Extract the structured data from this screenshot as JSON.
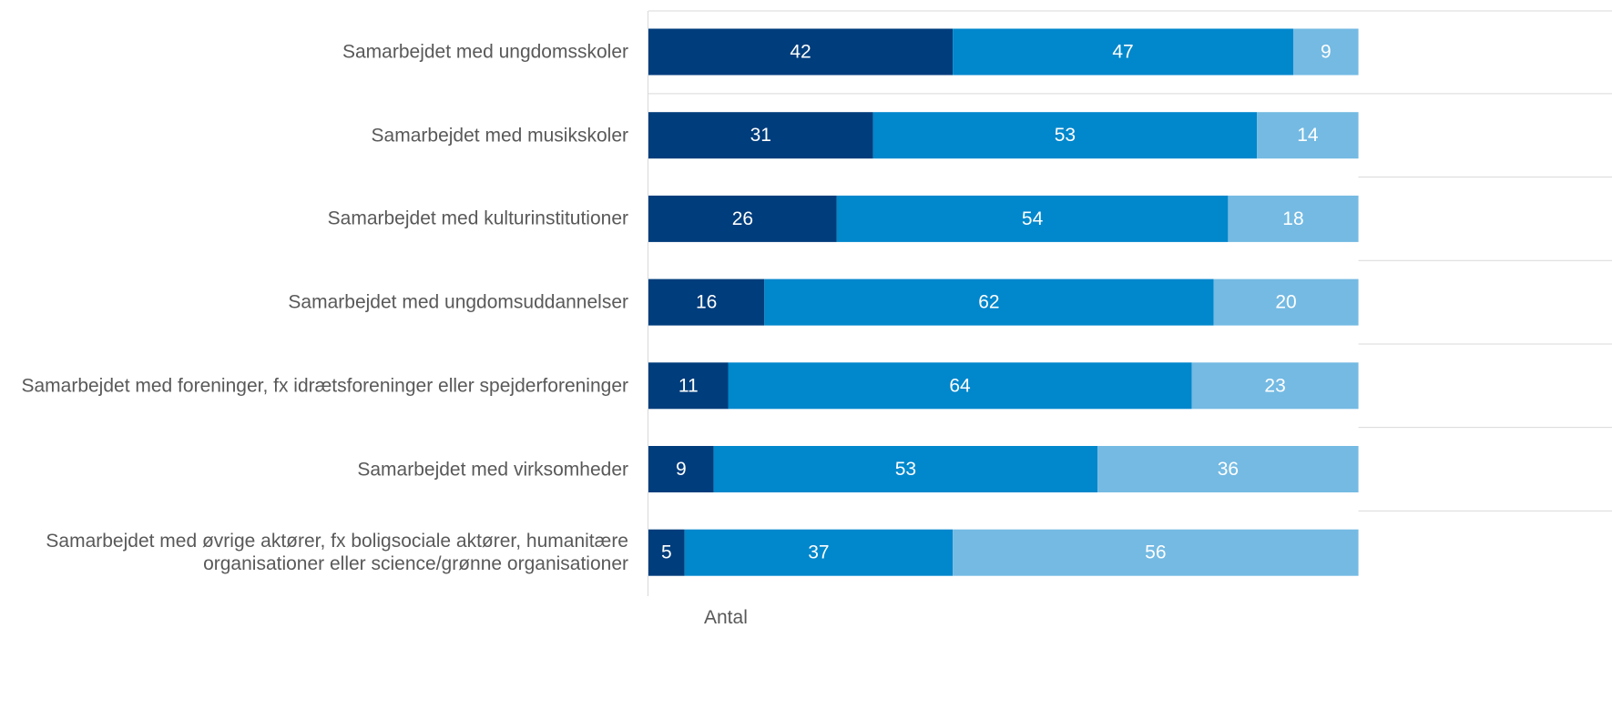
{
  "chart_data": {
    "type": "stacked_barh",
    "categories": [
      "Samarbejdet med ungdomsskoler",
      "Samarbejdet med musikskoler",
      "Samarbejdet med kulturinstitutioner",
      "Samarbejdet med ungdomsuddannelser",
      "Samarbejdet med foreninger, fx idrætsforeninger eller spejderforeninger",
      "Samarbejdet med virksomheder",
      "Samarbejdet med øvrige aktører, fx boligsociale aktører, humanitære\norganisationer eller science/grønne organisationer"
    ],
    "series": [
      {
        "color": "#003d7c",
        "values": [
          42,
          31,
          26,
          16,
          11,
          9,
          5
        ]
      },
      {
        "color": "#0087cc",
        "values": [
          47,
          53,
          54,
          62,
          64,
          53,
          37
        ]
      },
      {
        "color": "#74bae3",
        "values": [
          9,
          14,
          18,
          20,
          23,
          36,
          56
        ]
      }
    ],
    "xlabel": "Antal",
    "xlim": [
      0,
      133
    ]
  }
}
